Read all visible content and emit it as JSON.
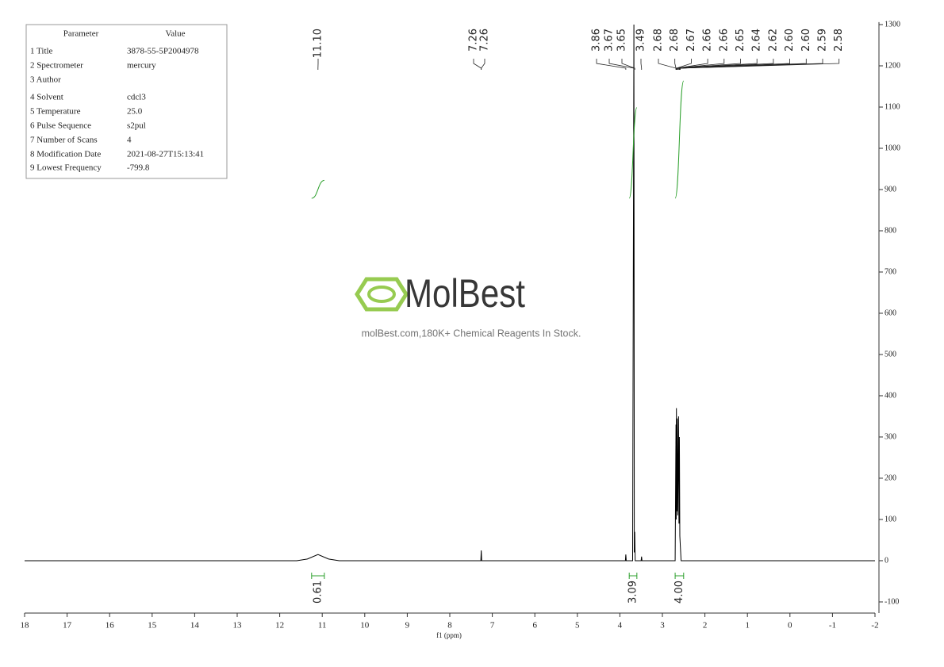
{
  "chart_data": {
    "type": "line",
    "x_label": "f1 (ppm)",
    "xlim": [
      18,
      -2
    ],
    "xticks": [
      18,
      17,
      16,
      15,
      14,
      13,
      12,
      11,
      10,
      9,
      8,
      7,
      6,
      5,
      4,
      3,
      2,
      1,
      0,
      -1,
      -2
    ],
    "ylim": [
      -127,
      1306
    ],
    "yticks": [
      -100,
      0,
      100,
      200,
      300,
      400,
      500,
      600,
      700,
      800,
      900,
      1000,
      1100,
      1200,
      1300
    ],
    "color": "#000000",
    "x": [
      18,
      11.6,
      11.35,
      11.1,
      10.85,
      10.6,
      7.27,
      7.26,
      7.25,
      3.87,
      3.86,
      3.85,
      3.7,
      3.67,
      3.66,
      3.65,
      3.64,
      3.5,
      3.49,
      3.48,
      2.7,
      2.68,
      2.675,
      2.67,
      2.66,
      2.65,
      2.64,
      2.62,
      2.61,
      2.6,
      2.59,
      2.58,
      2.56,
      -2
    ],
    "values": [
      0,
      0,
      4,
      15,
      4,
      0,
      0,
      25,
      0,
      0,
      15,
      0,
      0,
      1300,
      20,
      70,
      0,
      0,
      10,
      0,
      0,
      330,
      100,
      370,
      120,
      345,
      110,
      350,
      90,
      300,
      60,
      40,
      0,
      0
    ],
    "peak_labels": [
      "11.10",
      "7.26",
      "7.26",
      "3.86",
      "3.67",
      "3.65",
      "3.49",
      "2.68",
      "2.68",
      "2.67",
      "2.66",
      "2.66",
      "2.65",
      "2.64",
      "2.62",
      "2.60",
      "2.60",
      "2.59",
      "2.58"
    ],
    "integral_color": "#2ca02c",
    "integral_ranges": [
      [
        11.25,
        10.95
      ],
      [
        3.78,
        3.6
      ],
      [
        2.7,
        2.5
      ]
    ],
    "integrals": [
      0.61,
      3.09,
      4
    ],
    "integral_labels": [
      "0.61",
      "3.09",
      "4.00"
    ]
  },
  "parameters": {
    "header": [
      "Parameter",
      "Value"
    ],
    "rows": [
      [
        "1 Title",
        "3878-55-5P2004978"
      ],
      [
        "2 Spectrometer",
        "mercury"
      ],
      [
        "3 Author",
        ""
      ],
      [
        "4 Solvent",
        "cdcl3"
      ],
      [
        "5 Temperature",
        "25.0"
      ],
      [
        "6 Pulse Sequence",
        "s2pul"
      ],
      [
        "7 Number of Scans",
        "4"
      ],
      [
        "8 Modification Date",
        "2021-08-27T15:13:41"
      ],
      [
        "9 Lowest Frequency",
        "-799.8"
      ]
    ]
  },
  "watermark": {
    "logo": "MolBest",
    "tagline": "molBest.com,180K+ Chemical Reagents In Stock."
  }
}
